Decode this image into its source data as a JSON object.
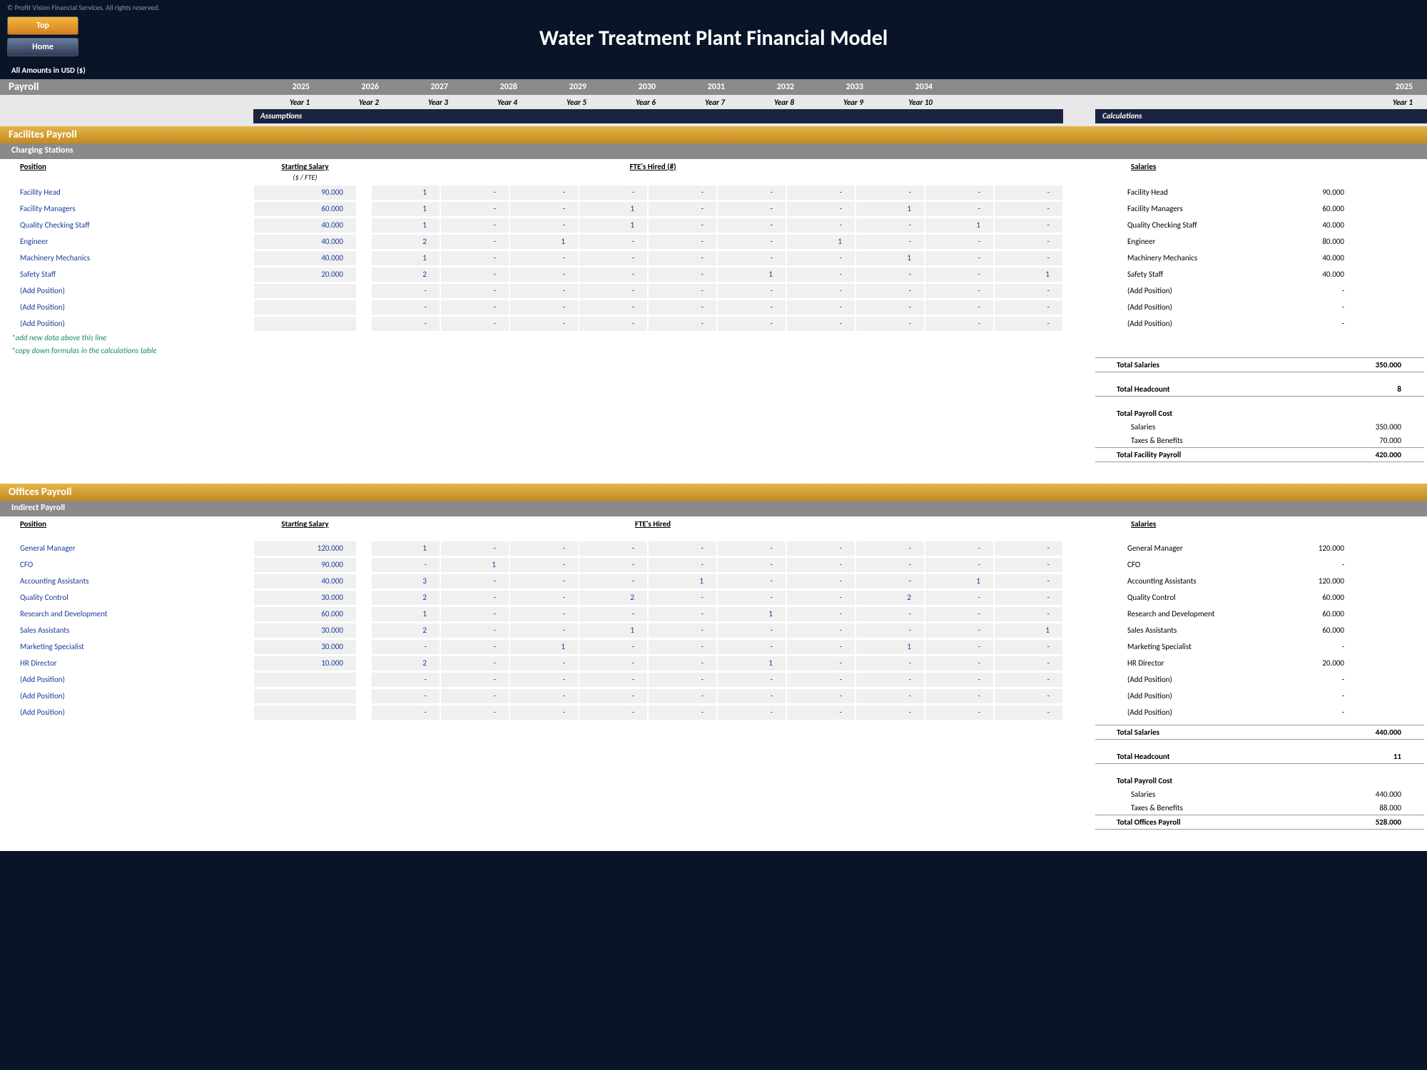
{
  "copyright": "© Profit Vision Financial Services. All rights reserved.",
  "buttons": {
    "top": "Top",
    "home": "Home"
  },
  "title": "Water Treatment Plant Financial Model",
  "amounts_note": "All Amounts in  USD ($)",
  "payroll_label": "Payroll",
  "years_num": [
    "2025",
    "2026",
    "2027",
    "2028",
    "2029",
    "2030",
    "2031",
    "2032",
    "2033",
    "2034"
  ],
  "years_lbl": [
    "Year 1",
    "Year 2",
    "Year 3",
    "Year 4",
    "Year 5",
    "Year 6",
    "Year 7",
    "Year 8",
    "Year 9",
    "Year 10"
  ],
  "right_year_num": "2025",
  "right_year_lbl": "Year 1",
  "tabs": {
    "assumptions": "Assumptions",
    "calculations": "Calculations"
  },
  "hdr": {
    "position": "Position",
    "starting_salary": "Starting Salary",
    "fte_hired_n": "FTE's Hired (#)",
    "fte_hired": "FTE's Hired",
    "salaries": "Salaries",
    "unit": "($ / FTE)"
  },
  "hints": {
    "add_above": "*add new data above this line",
    "copy_down": "*copy down formulas in the calculations table"
  },
  "facilities": {
    "section_title": "Facilites Payroll",
    "sub_title": "Charging Stations",
    "rows": [
      {
        "pos": "Facility Head",
        "salary": "90.000",
        "fte": [
          "1",
          "-",
          "-",
          "-",
          "-",
          "-",
          "-",
          "-",
          "-",
          "-"
        ],
        "rlabel": "Facility Head",
        "rval": "90.000"
      },
      {
        "pos": "Facility Managers",
        "salary": "60.000",
        "fte": [
          "1",
          "-",
          "-",
          "1",
          "-",
          "-",
          "-",
          "1",
          "-",
          "-"
        ],
        "rlabel": "Facility Managers",
        "rval": "60.000"
      },
      {
        "pos": "Quality Checking Staff",
        "salary": "40.000",
        "fte": [
          "1",
          "-",
          "-",
          "1",
          "-",
          "-",
          "-",
          "-",
          "1",
          "-"
        ],
        "rlabel": "Quality Checking Staff",
        "rval": "40.000"
      },
      {
        "pos": "Engineer",
        "salary": "40.000",
        "fte": [
          "2",
          "-",
          "1",
          "-",
          "-",
          "-",
          "1",
          "-",
          "-",
          "-"
        ],
        "rlabel": "Engineer",
        "rval": "80.000"
      },
      {
        "pos": "Machinery Mechanics",
        "salary": "40.000",
        "fte": [
          "1",
          "-",
          "-",
          "-",
          "-",
          "-",
          "-",
          "1",
          "-",
          "-"
        ],
        "rlabel": "Machinery Mechanics",
        "rval": "40.000"
      },
      {
        "pos": "Safety Staff",
        "salary": "20.000",
        "fte": [
          "2",
          "-",
          "-",
          "-",
          "-",
          "1",
          "-",
          "-",
          "-",
          "1"
        ],
        "rlabel": "Safety Staff",
        "rval": "40.000"
      },
      {
        "pos": "(Add Position)",
        "salary": "",
        "fte": [
          "-",
          "-",
          "-",
          "-",
          "-",
          "-",
          "-",
          "-",
          "-",
          "-"
        ],
        "rlabel": "(Add Position)",
        "rval": "-"
      },
      {
        "pos": "(Add Position)",
        "salary": "",
        "fte": [
          "-",
          "-",
          "-",
          "-",
          "-",
          "-",
          "-",
          "-",
          "-",
          "-"
        ],
        "rlabel": "(Add Position)",
        "rval": "-"
      },
      {
        "pos": "(Add Position)",
        "salary": "",
        "fte": [
          "-",
          "-",
          "-",
          "-",
          "-",
          "-",
          "-",
          "-",
          "-",
          "-"
        ],
        "rlabel": "(Add Position)",
        "rval": "-"
      }
    ],
    "totals": {
      "total_salaries_l": "Total Salaries",
      "total_salaries_v": "350.000",
      "total_headcount_l": "Total Headcount",
      "total_headcount_v": "8",
      "total_payroll_cost_l": "Total Payroll Cost",
      "salaries_l": "Salaries",
      "salaries_v": "350.000",
      "taxes_l": "Taxes & Benefits",
      "taxes_v": "70.000",
      "total_facility_l": "Total Facility Payroll",
      "total_facility_v": "420.000"
    }
  },
  "offices": {
    "section_title": "Offices Payroll",
    "sub_title": "Indirect Payroll",
    "rows": [
      {
        "pos": "General Manager",
        "salary": "120.000",
        "fte": [
          "1",
          "-",
          "-",
          "-",
          "-",
          "-",
          "-",
          "-",
          "-",
          "-"
        ],
        "rlabel": "General Manager",
        "rval": "120.000"
      },
      {
        "pos": "CFO",
        "salary": "90.000",
        "fte": [
          "-",
          "1",
          "-",
          "-",
          "-",
          "-",
          "-",
          "-",
          "-",
          "-"
        ],
        "rlabel": "CFO",
        "rval": "-"
      },
      {
        "pos": "Accounting Assistants",
        "salary": "40.000",
        "fte": [
          "3",
          "-",
          "-",
          "-",
          "1",
          "-",
          "-",
          "-",
          "1",
          "-"
        ],
        "rlabel": "Accounting Assistants",
        "rval": "120.000"
      },
      {
        "pos": "Quality Control",
        "salary": "30.000",
        "fte": [
          "2",
          "-",
          "-",
          "2",
          "-",
          "-",
          "-",
          "2",
          "-",
          "-"
        ],
        "rlabel": "Quality Control",
        "rval": "60.000"
      },
      {
        "pos": "Research and Development",
        "salary": "60.000",
        "fte": [
          "1",
          "-",
          "-",
          "-",
          "-",
          "1",
          "-",
          "-",
          "-",
          "-"
        ],
        "rlabel": "Research and Development",
        "rval": "60.000"
      },
      {
        "pos": "Sales Assistants",
        "salary": "30.000",
        "fte": [
          "2",
          "-",
          "-",
          "1",
          "-",
          "-",
          "-",
          "-",
          "-",
          "1"
        ],
        "rlabel": "Sales Assistants",
        "rval": "60.000"
      },
      {
        "pos": "Marketing Specialist",
        "salary": "30.000",
        "fte": [
          "-",
          "-",
          "1",
          "-",
          "-",
          "-",
          "-",
          "1",
          "-",
          "-"
        ],
        "rlabel": "Marketing Specialist",
        "rval": "-"
      },
      {
        "pos": "HR Director",
        "salary": "10.000",
        "fte": [
          "2",
          "-",
          "-",
          "-",
          "-",
          "1",
          "-",
          "-",
          "-",
          "-"
        ],
        "rlabel": "HR Director",
        "rval": "20.000"
      },
      {
        "pos": "(Add Position)",
        "salary": "",
        "fte": [
          "-",
          "-",
          "-",
          "-",
          "-",
          "-",
          "-",
          "-",
          "-",
          "-"
        ],
        "rlabel": "(Add Position)",
        "rval": "-"
      },
      {
        "pos": "(Add Position)",
        "salary": "",
        "fte": [
          "-",
          "-",
          "-",
          "-",
          "-",
          "-",
          "-",
          "-",
          "-",
          "-"
        ],
        "rlabel": "(Add Position)",
        "rval": "-"
      },
      {
        "pos": "(Add Position)",
        "salary": "",
        "fte": [
          "-",
          "-",
          "-",
          "-",
          "-",
          "-",
          "-",
          "-",
          "-",
          "-"
        ],
        "rlabel": "(Add Position)",
        "rval": "-"
      }
    ],
    "totals": {
      "total_salaries_l": "Total Salaries",
      "total_salaries_v": "440.000",
      "total_headcount_l": "Total Headcount",
      "total_headcount_v": "11",
      "total_payroll_cost_l": "Total Payroll Cost",
      "salaries_l": "Salaries",
      "salaries_v": "440.000",
      "taxes_l": "Taxes & Benefits",
      "taxes_v": "88.000",
      "total_facility_l": "Total Offices Payroll",
      "total_facility_v": "528.000"
    }
  }
}
